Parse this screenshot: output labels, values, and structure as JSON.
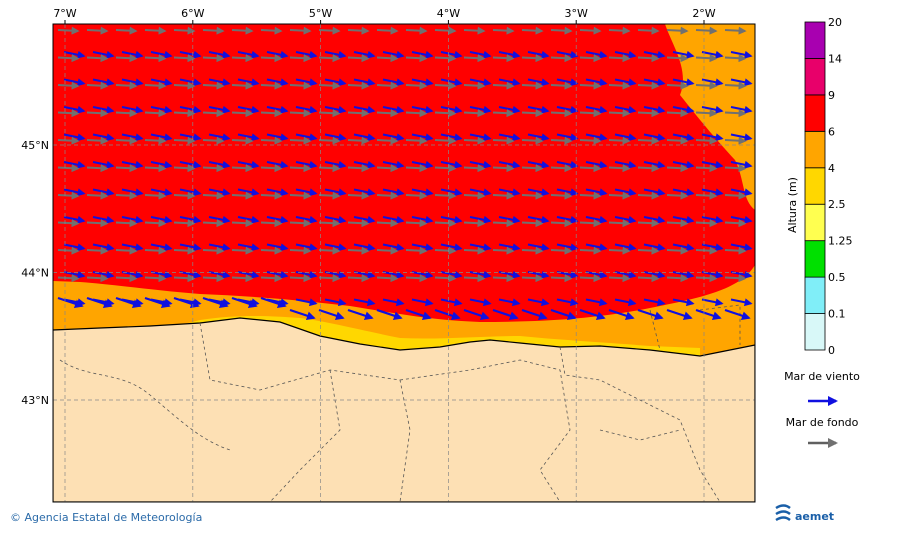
{
  "map": {
    "lon_labels": [
      "7°W",
      "6°W",
      "5°W",
      "4°W",
      "3°W",
      "2°W"
    ],
    "lat_labels": [
      "45°N",
      "44°N",
      "43°N"
    ]
  },
  "colorbar": {
    "title": "Altura (m)",
    "levels": [
      "0",
      "0.1",
      "0.5",
      "1.25",
      "2.5",
      "4",
      "6",
      "9",
      "14",
      "20"
    ]
  },
  "legend": {
    "items": [
      "Mar de viento",
      "Mar de fondo"
    ]
  },
  "footer": {
    "credit": "© Agencia Estatal de Meteorología",
    "logo": "aemet"
  }
}
